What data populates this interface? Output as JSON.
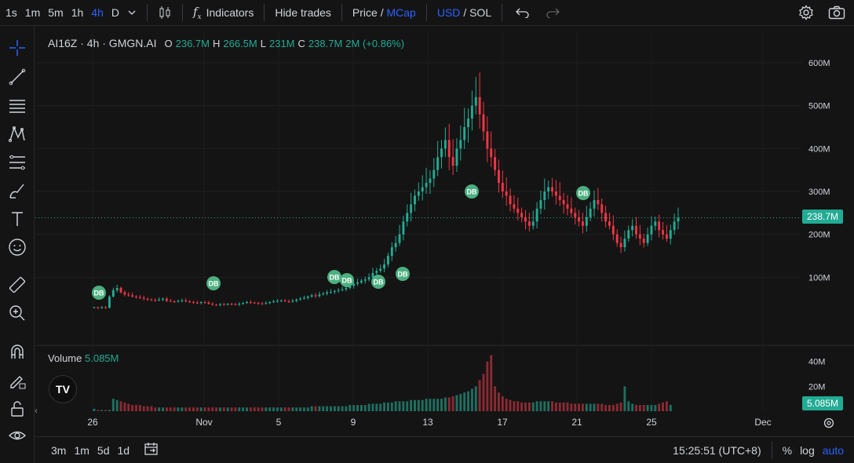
{
  "toolbar": {
    "intervals": [
      {
        "label": "1s"
      },
      {
        "label": "1m"
      },
      {
        "label": "5m"
      },
      {
        "label": "1h"
      },
      {
        "label": "4h",
        "active": true
      },
      {
        "label": "D"
      }
    ],
    "indicators_label": "Indicators",
    "hide_trades_label": "Hide trades",
    "price_label": "Price",
    "slash": "/",
    "mcap_label": "MCap",
    "usd_label": "USD",
    "sol_label": "SOL"
  },
  "legend": {
    "symbol": "AI16Z · 4h · GMGN.AI",
    "o_label": "O",
    "o_value": "236.7M",
    "h_label": "H",
    "h_value": "266.5M",
    "l_label": "L",
    "l_value": "231M",
    "c_label": "C",
    "c_value": "238.7M",
    "change": "2M (+0.86%)"
  },
  "volume_legend": {
    "label": "Volume",
    "value": "5.085M"
  },
  "price_axis": [
    "600M",
    "500M",
    "400M",
    "300M",
    "200M",
    "100M"
  ],
  "volume_axis": [
    "40M",
    "20M"
  ],
  "current_price_tag": "238.7M",
  "current_volume_tag": "5.085M",
  "time_axis": [
    "26",
    "Nov",
    "5",
    "9",
    "13",
    "17",
    "21",
    "25",
    "Dec"
  ],
  "markers_label": "DB",
  "bottombar": {
    "ranges": [
      "3m",
      "1m",
      "5d",
      "1d"
    ],
    "time": "15:25:51 (UTC+8)",
    "percent": "%",
    "log": "log",
    "auto": "auto"
  },
  "colors": {
    "up": "#22ab94",
    "down": "#f23645",
    "accent": "#2962ff",
    "background": "#141414"
  },
  "chart_data": {
    "type": "candlestick",
    "price_unit": "M",
    "ylim": [
      0,
      650
    ],
    "last": 238.7,
    "closes": [
      30,
      28,
      30,
      29,
      55,
      70,
      75,
      65,
      60,
      58,
      55,
      54,
      52,
      50,
      48,
      47,
      46,
      48,
      50,
      45,
      44,
      43,
      45,
      46,
      44,
      42,
      41,
      40,
      42,
      41,
      38,
      36,
      35,
      37,
      36,
      38,
      37,
      36,
      38,
      40,
      42,
      41,
      40,
      39,
      38,
      40,
      42,
      44,
      45,
      46,
      44,
      43,
      45,
      48,
      50,
      52,
      55,
      58,
      56,
      60,
      62,
      65,
      66,
      68,
      70,
      72,
      75,
      80,
      85,
      88,
      92,
      95,
      100,
      110,
      115,
      120,
      130,
      150,
      170,
      180,
      200,
      230,
      250,
      270,
      290,
      300,
      310,
      320,
      330,
      350,
      380,
      400,
      420,
      380,
      360,
      400,
      420,
      450,
      470,
      500,
      520,
      480,
      440,
      400,
      380,
      350,
      320,
      300,
      290,
      270,
      260,
      250,
      240,
      230,
      220,
      230,
      260,
      280,
      300,
      310,
      300,
      290,
      280,
      270,
      260,
      250,
      240,
      230,
      220,
      240,
      260,
      280,
      270,
      250,
      230,
      220,
      200,
      180,
      170,
      190,
      210,
      220,
      200,
      190,
      180,
      200,
      220,
      230,
      210,
      200,
      190,
      210,
      230,
      238.7
    ],
    "volume_unit": "M",
    "volumes": [
      2,
      1,
      1,
      1,
      1,
      10,
      9,
      8,
      7,
      6,
      5,
      5,
      5,
      4,
      4,
      4,
      3,
      3,
      3,
      3,
      3,
      3,
      3,
      3,
      3,
      3,
      3,
      3,
      3,
      3,
      3,
      3,
      3,
      3,
      3,
      3,
      3,
      3,
      3,
      3,
      3,
      3,
      3,
      3,
      3,
      3,
      3,
      3,
      3,
      3,
      3,
      3,
      3,
      3,
      3,
      3,
      3,
      4,
      4,
      4,
      4,
      4,
      4,
      4,
      4,
      4,
      4,
      5,
      5,
      5,
      5,
      5,
      6,
      6,
      6,
      6,
      7,
      7,
      7,
      8,
      8,
      8,
      8,
      9,
      9,
      9,
      9,
      10,
      10,
      10,
      10,
      10,
      11,
      11,
      12,
      13,
      14,
      15,
      16,
      18,
      20,
      25,
      30,
      40,
      45,
      20,
      15,
      12,
      10,
      9,
      8,
      8,
      7,
      7,
      7,
      7,
      8,
      8,
      8,
      8,
      8,
      7,
      7,
      7,
      7,
      6,
      6,
      6,
      6,
      6,
      6,
      6,
      6,
      6,
      5,
      5,
      5,
      6,
      7,
      20,
      8,
      6,
      5,
      5,
      5,
      5,
      5,
      5,
      6,
      7,
      8,
      5.085
    ]
  }
}
